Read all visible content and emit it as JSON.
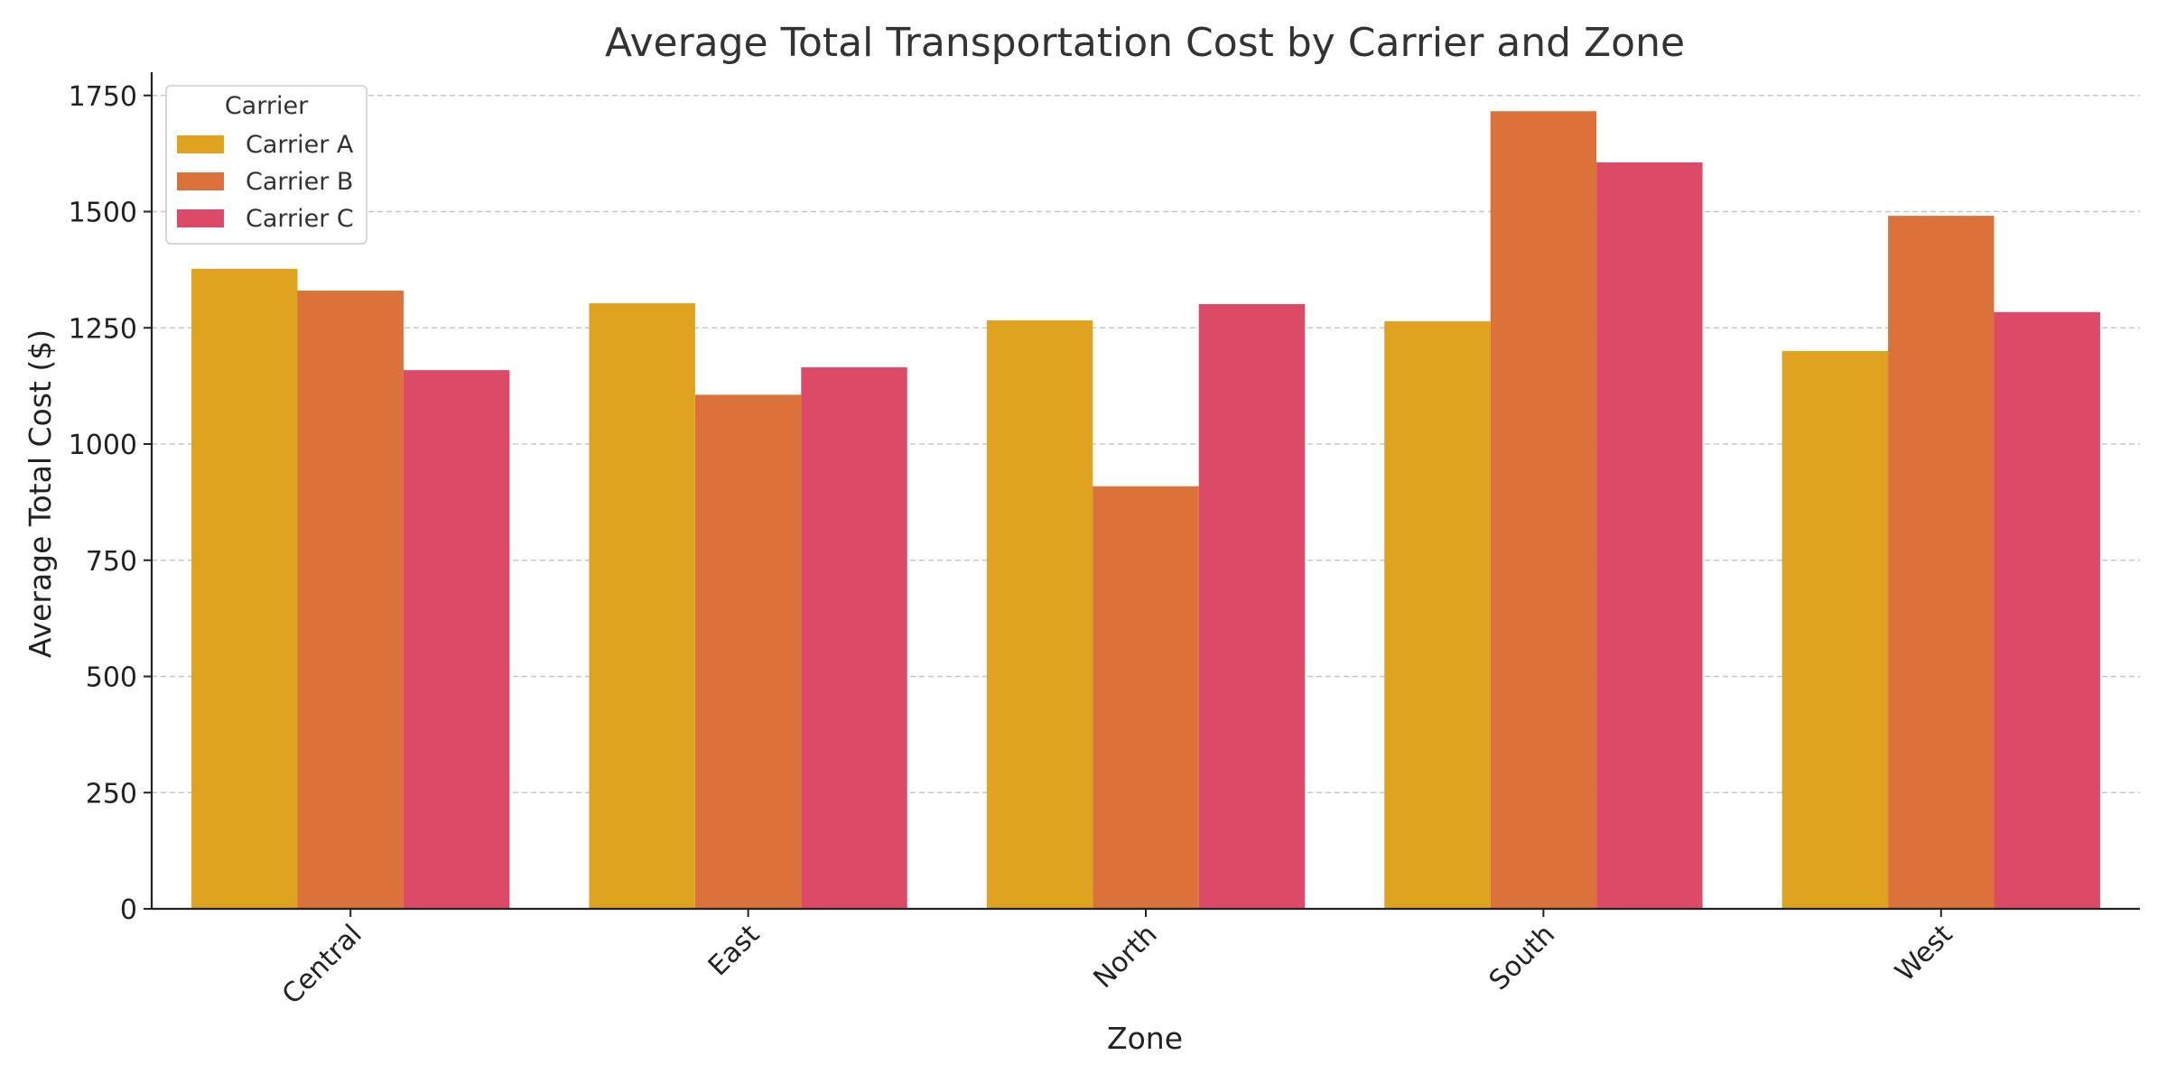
{
  "chart_data": {
    "type": "bar",
    "title": "Average Total Transportation Cost by Carrier and Zone",
    "xlabel": "Zone",
    "ylabel": "Average Total Cost ($)",
    "categories": [
      "Central",
      "East",
      "North",
      "South",
      "West"
    ],
    "ylim": [
      0,
      1800
    ],
    "yticks": [
      0,
      250,
      500,
      750,
      1000,
      1250,
      1500,
      1750
    ],
    "grid": "y-dashed",
    "legend": {
      "title": "Carrier",
      "position": "top-left"
    },
    "series": [
      {
        "name": "Carrier A",
        "color": "#E0A31F",
        "values": [
          1377,
          1303,
          1266,
          1264,
          1200
        ]
      },
      {
        "name": "Carrier B",
        "color": "#DA723A",
        "values": [
          1330,
          1106,
          909,
          1716,
          1491
        ]
      },
      {
        "name": "Carrier C",
        "color": "#DD4A67",
        "values": [
          1159,
          1165,
          1301,
          1606,
          1284
        ]
      }
    ]
  }
}
